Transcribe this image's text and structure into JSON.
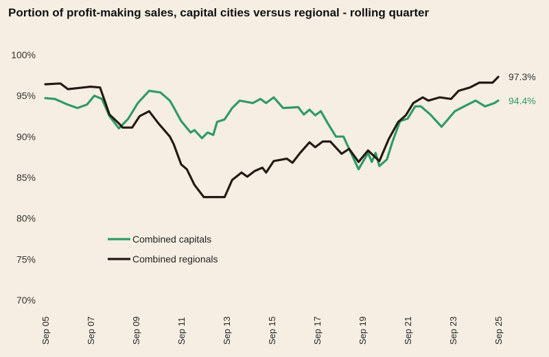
{
  "chart_data": {
    "type": "line",
    "title": "Portion of profit-making sales, capital cities versus regional - rolling quarter",
    "xlabel": "",
    "ylabel": "",
    "ylim": [
      70,
      100
    ],
    "yticks": [
      "70%",
      "75%",
      "80%",
      "85%",
      "90%",
      "95%",
      "100%"
    ],
    "ytick_values": [
      70,
      75,
      80,
      85,
      90,
      95,
      100
    ],
    "xlim": [
      "2005-09",
      "2025-09"
    ],
    "xticks": [
      "Sep 05",
      "Sep 07",
      "Sep 09",
      "Sep 11",
      "Sep 13",
      "Sep 15",
      "Sep 17",
      "Sep 19",
      "Sep 21",
      "Sep 23",
      "Sep 25"
    ],
    "xtick_values": [
      "2005-09",
      "2007-09",
      "2009-09",
      "2011-09",
      "2013-09",
      "2015-09",
      "2017-09",
      "2019-09",
      "2021-09",
      "2023-09",
      "2025-09"
    ],
    "grid": false,
    "legend_position": "bottom-left",
    "series": [
      {
        "name": "Combined capitals",
        "color": "#2f9a66",
        "end_label": "94.4%",
        "points": [
          [
            "2005-09",
            94.7
          ],
          [
            "2006-02",
            94.6
          ],
          [
            "2006-09",
            93.9
          ],
          [
            "2007-02",
            93.5
          ],
          [
            "2007-07",
            93.9
          ],
          [
            "2007-11",
            95.0
          ],
          [
            "2008-03",
            94.6
          ],
          [
            "2008-07",
            92.5
          ],
          [
            "2008-12",
            91.0
          ],
          [
            "2009-05",
            92.2
          ],
          [
            "2009-10",
            94.1
          ],
          [
            "2010-04",
            95.6
          ],
          [
            "2010-10",
            95.4
          ],
          [
            "2011-03",
            94.4
          ],
          [
            "2011-05",
            93.6
          ],
          [
            "2011-09",
            91.9
          ],
          [
            "2012-02",
            90.5
          ],
          [
            "2012-04",
            90.8
          ],
          [
            "2012-08",
            89.8
          ],
          [
            "2012-11",
            90.5
          ],
          [
            "2013-02",
            90.2
          ],
          [
            "2013-04",
            91.8
          ],
          [
            "2013-08",
            92.1
          ],
          [
            "2013-12",
            93.5
          ],
          [
            "2014-04",
            94.4
          ],
          [
            "2014-11",
            94.1
          ],
          [
            "2015-03",
            94.6
          ],
          [
            "2015-06",
            94.1
          ],
          [
            "2015-10",
            94.8
          ],
          [
            "2016-03",
            93.5
          ],
          [
            "2016-11",
            93.6
          ],
          [
            "2017-02",
            92.7
          ],
          [
            "2017-05",
            93.3
          ],
          [
            "2017-08",
            92.6
          ],
          [
            "2017-11",
            93.1
          ],
          [
            "2018-03",
            91.5
          ],
          [
            "2018-07",
            90.0
          ],
          [
            "2018-11",
            90.0
          ],
          [
            "2019-03",
            88.0
          ],
          [
            "2019-07",
            86.0
          ],
          [
            "2019-12",
            88.0
          ],
          [
            "2020-02",
            86.9
          ],
          [
            "2020-04",
            88.0
          ],
          [
            "2020-06",
            86.4
          ],
          [
            "2020-10",
            87.2
          ],
          [
            "2021-01",
            89.4
          ],
          [
            "2021-05",
            91.9
          ],
          [
            "2021-09",
            92.2
          ],
          [
            "2022-01",
            93.7
          ],
          [
            "2022-04",
            93.7
          ],
          [
            "2022-09",
            92.7
          ],
          [
            "2023-03",
            91.2
          ],
          [
            "2023-10",
            93.1
          ],
          [
            "2024-03",
            93.7
          ],
          [
            "2024-09",
            94.4
          ],
          [
            "2025-02",
            93.7
          ],
          [
            "2025-07",
            94.1
          ],
          [
            "2025-09",
            94.4
          ]
        ]
      },
      {
        "name": "Combined regionals",
        "color": "#231a14",
        "end_label": "97.3%",
        "points": [
          [
            "2005-09",
            96.4
          ],
          [
            "2006-05",
            96.5
          ],
          [
            "2006-09",
            95.8
          ],
          [
            "2007-09",
            96.1
          ],
          [
            "2008-02",
            96.0
          ],
          [
            "2008-07",
            92.7
          ],
          [
            "2008-12",
            91.6
          ],
          [
            "2009-02",
            91.1
          ],
          [
            "2009-07",
            91.1
          ],
          [
            "2009-11",
            92.5
          ],
          [
            "2010-04",
            93.1
          ],
          [
            "2010-09",
            91.6
          ],
          [
            "2011-03",
            90.0
          ],
          [
            "2011-05",
            89.1
          ],
          [
            "2011-09",
            86.6
          ],
          [
            "2011-12",
            86.0
          ],
          [
            "2012-04",
            84.1
          ],
          [
            "2012-09",
            82.6
          ],
          [
            "2013-08",
            82.6
          ],
          [
            "2013-12",
            84.7
          ],
          [
            "2014-05",
            85.6
          ],
          [
            "2014-08",
            85.1
          ],
          [
            "2014-12",
            85.8
          ],
          [
            "2015-04",
            86.2
          ],
          [
            "2015-06",
            85.6
          ],
          [
            "2015-10",
            87.0
          ],
          [
            "2016-05",
            87.3
          ],
          [
            "2016-08",
            86.8
          ],
          [
            "2016-12",
            88.0
          ],
          [
            "2017-05",
            89.3
          ],
          [
            "2017-08",
            88.7
          ],
          [
            "2017-12",
            89.4
          ],
          [
            "2018-04",
            89.4
          ],
          [
            "2018-10",
            87.9
          ],
          [
            "2019-02",
            88.5
          ],
          [
            "2019-07",
            86.9
          ],
          [
            "2019-12",
            88.3
          ],
          [
            "2020-06",
            87.0
          ],
          [
            "2020-11",
            89.7
          ],
          [
            "2021-04",
            91.8
          ],
          [
            "2021-08",
            92.6
          ],
          [
            "2021-12",
            94.1
          ],
          [
            "2022-05",
            94.8
          ],
          [
            "2022-08",
            94.4
          ],
          [
            "2023-02",
            94.8
          ],
          [
            "2023-08",
            94.6
          ],
          [
            "2023-12",
            95.6
          ],
          [
            "2024-06",
            96.0
          ],
          [
            "2024-11",
            96.6
          ],
          [
            "2025-06",
            96.6
          ],
          [
            "2025-09",
            97.3
          ]
        ]
      }
    ]
  }
}
